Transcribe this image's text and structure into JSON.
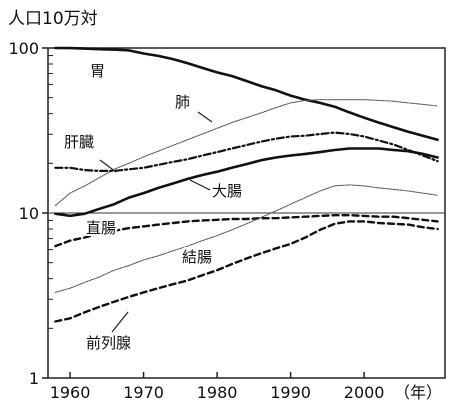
{
  "chart_data": {
    "type": "line",
    "title": "",
    "ylabel": "人口10万対",
    "xlabel": "（年）",
    "y_scale": "log",
    "xlim": [
      1957,
      2011
    ],
    "ylim": [
      1,
      100
    ],
    "x_ticks": [
      "1960",
      "1970",
      "1980",
      "1990",
      "2000"
    ],
    "y_ticks": [
      "1",
      "10",
      "100"
    ],
    "grid": false,
    "reference_line_y": 10,
    "series": [
      {
        "name": "胃",
        "style": "solid",
        "x": [
          1958,
          1960,
          1962,
          1964,
          1966,
          1968,
          1970,
          1972,
          1974,
          1976,
          1978,
          1980,
          1982,
          1984,
          1986,
          1988,
          1990,
          1992,
          1994,
          1996,
          1998,
          2000,
          2002,
          2004,
          2006,
          2008,
          2010
        ],
        "y": [
          100,
          99.8,
          99.2,
          98.4,
          97.8,
          96.7,
          92.6,
          89.6,
          85.7,
          80.9,
          75.8,
          71.1,
          67.7,
          63.1,
          58.8,
          55.4,
          51.5,
          48.6,
          46.5,
          44.1,
          40.7,
          37.8,
          35.3,
          33.1,
          31.1,
          29.4,
          27.8
        ]
      },
      {
        "name": "肺",
        "style": "fine-dotted",
        "x": [
          1958,
          1960,
          1962,
          1964,
          1966,
          1968,
          1970,
          1972,
          1974,
          1976,
          1978,
          1980,
          1982,
          1984,
          1986,
          1988,
          1990,
          1992,
          1994,
          1996,
          1998,
          2000,
          2002,
          2004,
          2006,
          2008,
          2010
        ],
        "y": [
          11.1,
          13.2,
          14.6,
          16.4,
          18.4,
          20.0,
          21.9,
          23.7,
          25.7,
          27.8,
          30.1,
          32.6,
          35.3,
          37.8,
          40.4,
          43.5,
          46.5,
          48.1,
          48.6,
          48.6,
          48.6,
          48.6,
          48.1,
          47.6,
          46.5,
          45.5,
          44.5
        ]
      },
      {
        "name": "肝臓",
        "style": "dash-dot",
        "x": [
          1958,
          1960,
          1962,
          1964,
          1966,
          1968,
          1970,
          1972,
          1974,
          1976,
          1978,
          1980,
          1982,
          1984,
          1986,
          1988,
          1990,
          1992,
          1994,
          1996,
          1998,
          2000,
          2002,
          2004,
          2006,
          2008,
          2010
        ],
        "y": [
          18.8,
          18.8,
          18.2,
          18.0,
          18.0,
          18.4,
          18.8,
          19.6,
          20.4,
          21.2,
          22.3,
          23.4,
          24.6,
          25.8,
          27.1,
          28.2,
          29.1,
          29.4,
          30.1,
          30.7,
          30.1,
          29.1,
          27.5,
          26.0,
          24.1,
          22.3,
          20.6
        ]
      },
      {
        "name": "大腸",
        "style": "solid",
        "x": [
          1958,
          1960,
          1962,
          1964,
          1966,
          1968,
          1970,
          1972,
          1974,
          1976,
          1978,
          1980,
          1982,
          1984,
          1986,
          1988,
          1990,
          1992,
          1994,
          1996,
          1998,
          2000,
          2002,
          2004,
          2006,
          2008,
          2010
        ],
        "y": [
          9.9,
          9.6,
          9.9,
          10.6,
          11.3,
          12.4,
          13.2,
          14.2,
          15.1,
          16.1,
          17.0,
          17.8,
          18.8,
          19.8,
          20.9,
          21.7,
          22.3,
          22.8,
          23.4,
          24.1,
          24.6,
          24.6,
          24.6,
          24.1,
          23.7,
          22.8,
          21.7
        ]
      },
      {
        "name": "直腸",
        "style": "dashed",
        "x": [
          1958,
          1960,
          1962,
          1964,
          1966,
          1968,
          1970,
          1972,
          1974,
          1976,
          1978,
          1980,
          1982,
          1984,
          1986,
          1988,
          1990,
          1992,
          1994,
          1996,
          1998,
          2000,
          2002,
          2004,
          2006,
          2008,
          2010
        ],
        "y": [
          6.3,
          6.8,
          7.1,
          7.5,
          7.8,
          8.1,
          8.3,
          8.5,
          8.7,
          8.9,
          9.0,
          9.1,
          9.2,
          9.2,
          9.3,
          9.3,
          9.4,
          9.5,
          9.6,
          9.7,
          9.7,
          9.6,
          9.5,
          9.5,
          9.3,
          9.1,
          8.9
        ]
      },
      {
        "name": "結腸",
        "style": "fine-dotted",
        "x": [
          1958,
          1960,
          1962,
          1964,
          1966,
          1968,
          1970,
          1972,
          1974,
          1976,
          1978,
          1980,
          1982,
          1984,
          1986,
          1988,
          1990,
          1992,
          1994,
          1996,
          1998,
          2000,
          2002,
          2004,
          2006,
          2008,
          2010
        ],
        "y": [
          3.3,
          3.5,
          3.8,
          4.1,
          4.5,
          4.8,
          5.2,
          5.5,
          5.9,
          6.3,
          6.8,
          7.3,
          7.9,
          8.6,
          9.4,
          10.3,
          11.3,
          12.4,
          13.6,
          14.6,
          14.8,
          14.6,
          14.2,
          13.9,
          13.6,
          13.2,
          12.8
        ]
      },
      {
        "name": "前列腺",
        "style": "dashed",
        "x": [
          1958,
          1960,
          1962,
          1964,
          1966,
          1968,
          1970,
          1972,
          1974,
          1976,
          1978,
          1980,
          1982,
          1984,
          1986,
          1988,
          1990,
          1992,
          1994,
          1996,
          1998,
          2000,
          2002,
          2004,
          2006,
          2008,
          2010
        ],
        "y": [
          2.2,
          2.3,
          2.5,
          2.7,
          2.9,
          3.1,
          3.3,
          3.5,
          3.7,
          3.9,
          4.2,
          4.5,
          4.9,
          5.3,
          5.7,
          6.1,
          6.5,
          7.1,
          7.9,
          8.6,
          8.9,
          8.9,
          8.7,
          8.6,
          8.5,
          8.2,
          8.0
        ]
      }
    ]
  }
}
